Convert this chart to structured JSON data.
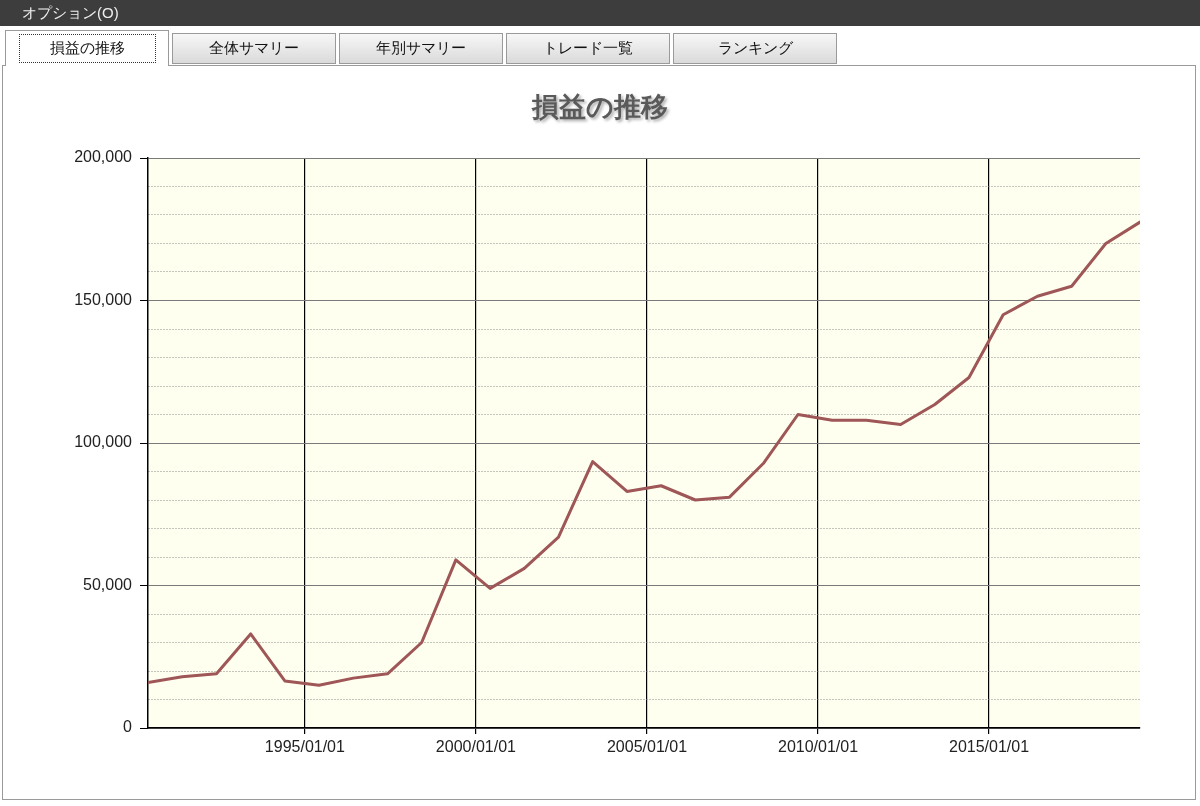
{
  "chart_data": {
    "type": "line",
    "title": "損益の推移",
    "annotations": [
      "オプション(O)",
      "損益の推移",
      "全体サマリー",
      "年別サマリー",
      "トレード一覧",
      "ランキング"
    ],
    "x": [
      "1990-06",
      "1991-06",
      "1992-06",
      "1993-06",
      "1994-06",
      "1995-06",
      "1996-06",
      "1997-06",
      "1998-06",
      "1999-06",
      "2000-06",
      "2001-06",
      "2002-06",
      "2003-06",
      "2004-06",
      "2005-06",
      "2006-06",
      "2007-06",
      "2008-06",
      "2009-06",
      "2010-06",
      "2011-06",
      "2012-06",
      "2013-06",
      "2014-06",
      "2015-06",
      "2016-06",
      "2017-06",
      "2018-06",
      "2019-06"
    ],
    "values": [
      16000,
      18000,
      19000,
      33000,
      16500,
      15000,
      17500,
      19000,
      30000,
      59000,
      49000,
      56000,
      67000,
      93500,
      83000,
      85000,
      80000,
      81000,
      93000,
      110000,
      108000,
      108000,
      106500,
      113500,
      123000,
      145000,
      151500,
      155000,
      170000,
      177500
    ],
    "color": "#9e5656",
    "xlim": [
      "1990-06",
      "2019-06"
    ],
    "xticks": [
      {
        "value": "1995-01-01",
        "label": "1995/01/01"
      },
      {
        "value": "2000-01-01",
        "label": "2000/01/01"
      },
      {
        "value": "2005-01-01",
        "label": "2005/01/01"
      },
      {
        "value": "2010-01-01",
        "label": "2010/01/01"
      },
      {
        "value": "2015-01-01",
        "label": "2015/01/01"
      }
    ],
    "ylim": [
      0,
      200000
    ],
    "yticks": [
      0,
      {
        "value": 10000,
        "label": null
      },
      {
        "value": 20000,
        "label": null
      },
      {
        "value": 30000,
        "label": null
      },
      {
        "value": 40000,
        "label": null
      },
      {
        "value": 50000,
        "label": "50,000"
      },
      {
        "value": 60000,
        "label": null
      },
      {
        "value": 70000,
        "label": null
      },
      {
        "value": 80000,
        "label": null
      },
      {
        "value": 90000,
        "label": null
      },
      {
        "value": 100000,
        "label": "100,000"
      },
      {
        "value": 110000,
        "label": null
      },
      {
        "value": 120000,
        "label": null
      },
      {
        "value": 130000,
        "label": null
      },
      {
        "value": 140000,
        "label": null
      },
      {
        "value": 150000,
        "label": "150,000"
      },
      {
        "value": 160000,
        "label": null
      },
      {
        "value": 170000,
        "label": null
      },
      {
        "value": 180000,
        "label": null
      },
      {
        "value": 190000,
        "label": null
      },
      {
        "value": 200000,
        "label": "200,000"
      }
    ],
    "grid": true
  }
}
